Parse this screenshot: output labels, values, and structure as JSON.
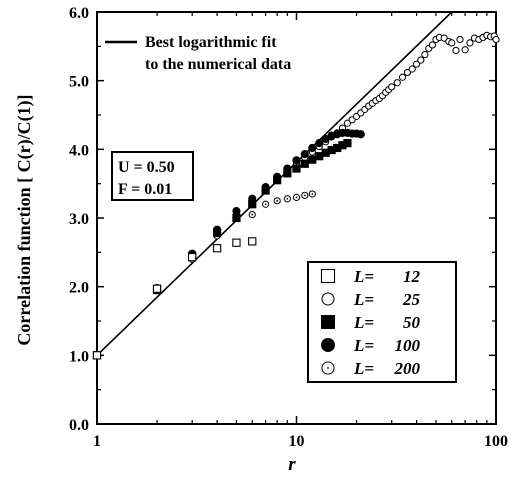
{
  "chart_data": {
    "type": "scatter",
    "xscale": "log",
    "xlim": [
      1,
      100
    ],
    "ylim": [
      0.0,
      6.0
    ],
    "xlabel": "r",
    "ylabel": "Correlation function [ C(r)/C(1)]",
    "x_ticks": [
      "1",
      "10",
      "100"
    ],
    "y_ticks": [
      "0.0",
      "1.0",
      "2.0",
      "3.0",
      "4.0",
      "5.0",
      "6.0"
    ],
    "legend_position": "lower-right",
    "fit": {
      "label_lines": [
        "Best logarithmic fit",
        "to the numerical data"
      ],
      "x": [
        1,
        60
      ],
      "y": [
        1.0,
        6.0
      ]
    },
    "annotation": {
      "lines": [
        "U = 0.50",
        "F = 0.01"
      ]
    },
    "series": [
      {
        "name": "12",
        "marker": "open-square",
        "x": [
          1,
          2,
          3,
          4,
          5,
          6
        ],
        "y": [
          1.0,
          1.97,
          2.43,
          2.56,
          2.64,
          2.66
        ]
      },
      {
        "name": "25",
        "marker": "open-circle",
        "x": [
          1,
          2,
          3,
          4,
          5,
          6,
          7,
          8,
          9,
          10,
          11,
          12,
          13,
          14,
          15,
          16,
          17,
          18,
          19,
          20,
          21,
          22,
          23,
          24,
          25,
          26,
          27,
          28,
          29,
          30,
          32,
          34,
          36,
          38,
          40,
          42,
          44,
          46,
          48,
          50,
          52,
          55,
          58,
          60,
          63,
          66,
          70,
          74,
          78,
          82,
          86,
          90,
          94,
          98,
          100
        ],
        "y": [
          1.0,
          1.95,
          2.45,
          2.75,
          3.05,
          3.28,
          3.42,
          3.58,
          3.7,
          3.8,
          3.88,
          3.96,
          4.04,
          4.11,
          4.18,
          4.24,
          4.31,
          4.38,
          4.43,
          4.48,
          4.53,
          4.58,
          4.63,
          4.67,
          4.71,
          4.74,
          4.78,
          4.83,
          4.87,
          4.91,
          4.97,
          5.05,
          5.12,
          5.17,
          5.24,
          5.3,
          5.38,
          5.47,
          5.52,
          5.6,
          5.63,
          5.62,
          5.57,
          5.55,
          5.44,
          5.6,
          5.45,
          5.55,
          5.62,
          5.6,
          5.63,
          5.66,
          5.64,
          5.65,
          5.6
        ]
      },
      {
        "name": "50",
        "marker": "filled-square",
        "x": [
          1,
          2,
          3,
          4,
          5,
          6,
          7,
          8,
          9,
          10,
          11,
          12,
          13,
          14,
          15,
          16,
          17,
          18
        ],
        "y": [
          1.0,
          1.95,
          2.45,
          2.78,
          3.0,
          3.2,
          3.4,
          3.55,
          3.65,
          3.72,
          3.79,
          3.85,
          3.9,
          3.95,
          3.99,
          4.02,
          4.06,
          4.09
        ]
      },
      {
        "name": "100",
        "marker": "filled-circle",
        "x": [
          1,
          2,
          3,
          4,
          5,
          6,
          7,
          8,
          9,
          10,
          11,
          12,
          13,
          14,
          15,
          16,
          17,
          18,
          19,
          20,
          21
        ],
        "y": [
          1.0,
          1.98,
          2.48,
          2.83,
          3.1,
          3.28,
          3.45,
          3.6,
          3.72,
          3.84,
          3.93,
          4.02,
          4.09,
          4.15,
          4.2,
          4.22,
          4.24,
          4.24,
          4.23,
          4.23,
          4.22
        ]
      },
      {
        "name": "200",
        "marker": "dotted-circle",
        "x": [
          1,
          2,
          3,
          4,
          5,
          6,
          7,
          8,
          9,
          10,
          11,
          12
        ],
        "y": [
          1.0,
          1.96,
          2.4,
          2.74,
          3.03,
          3.05,
          3.2,
          3.25,
          3.28,
          3.3,
          3.33,
          3.35
        ]
      }
    ],
    "legend_prefix": "L"
  }
}
